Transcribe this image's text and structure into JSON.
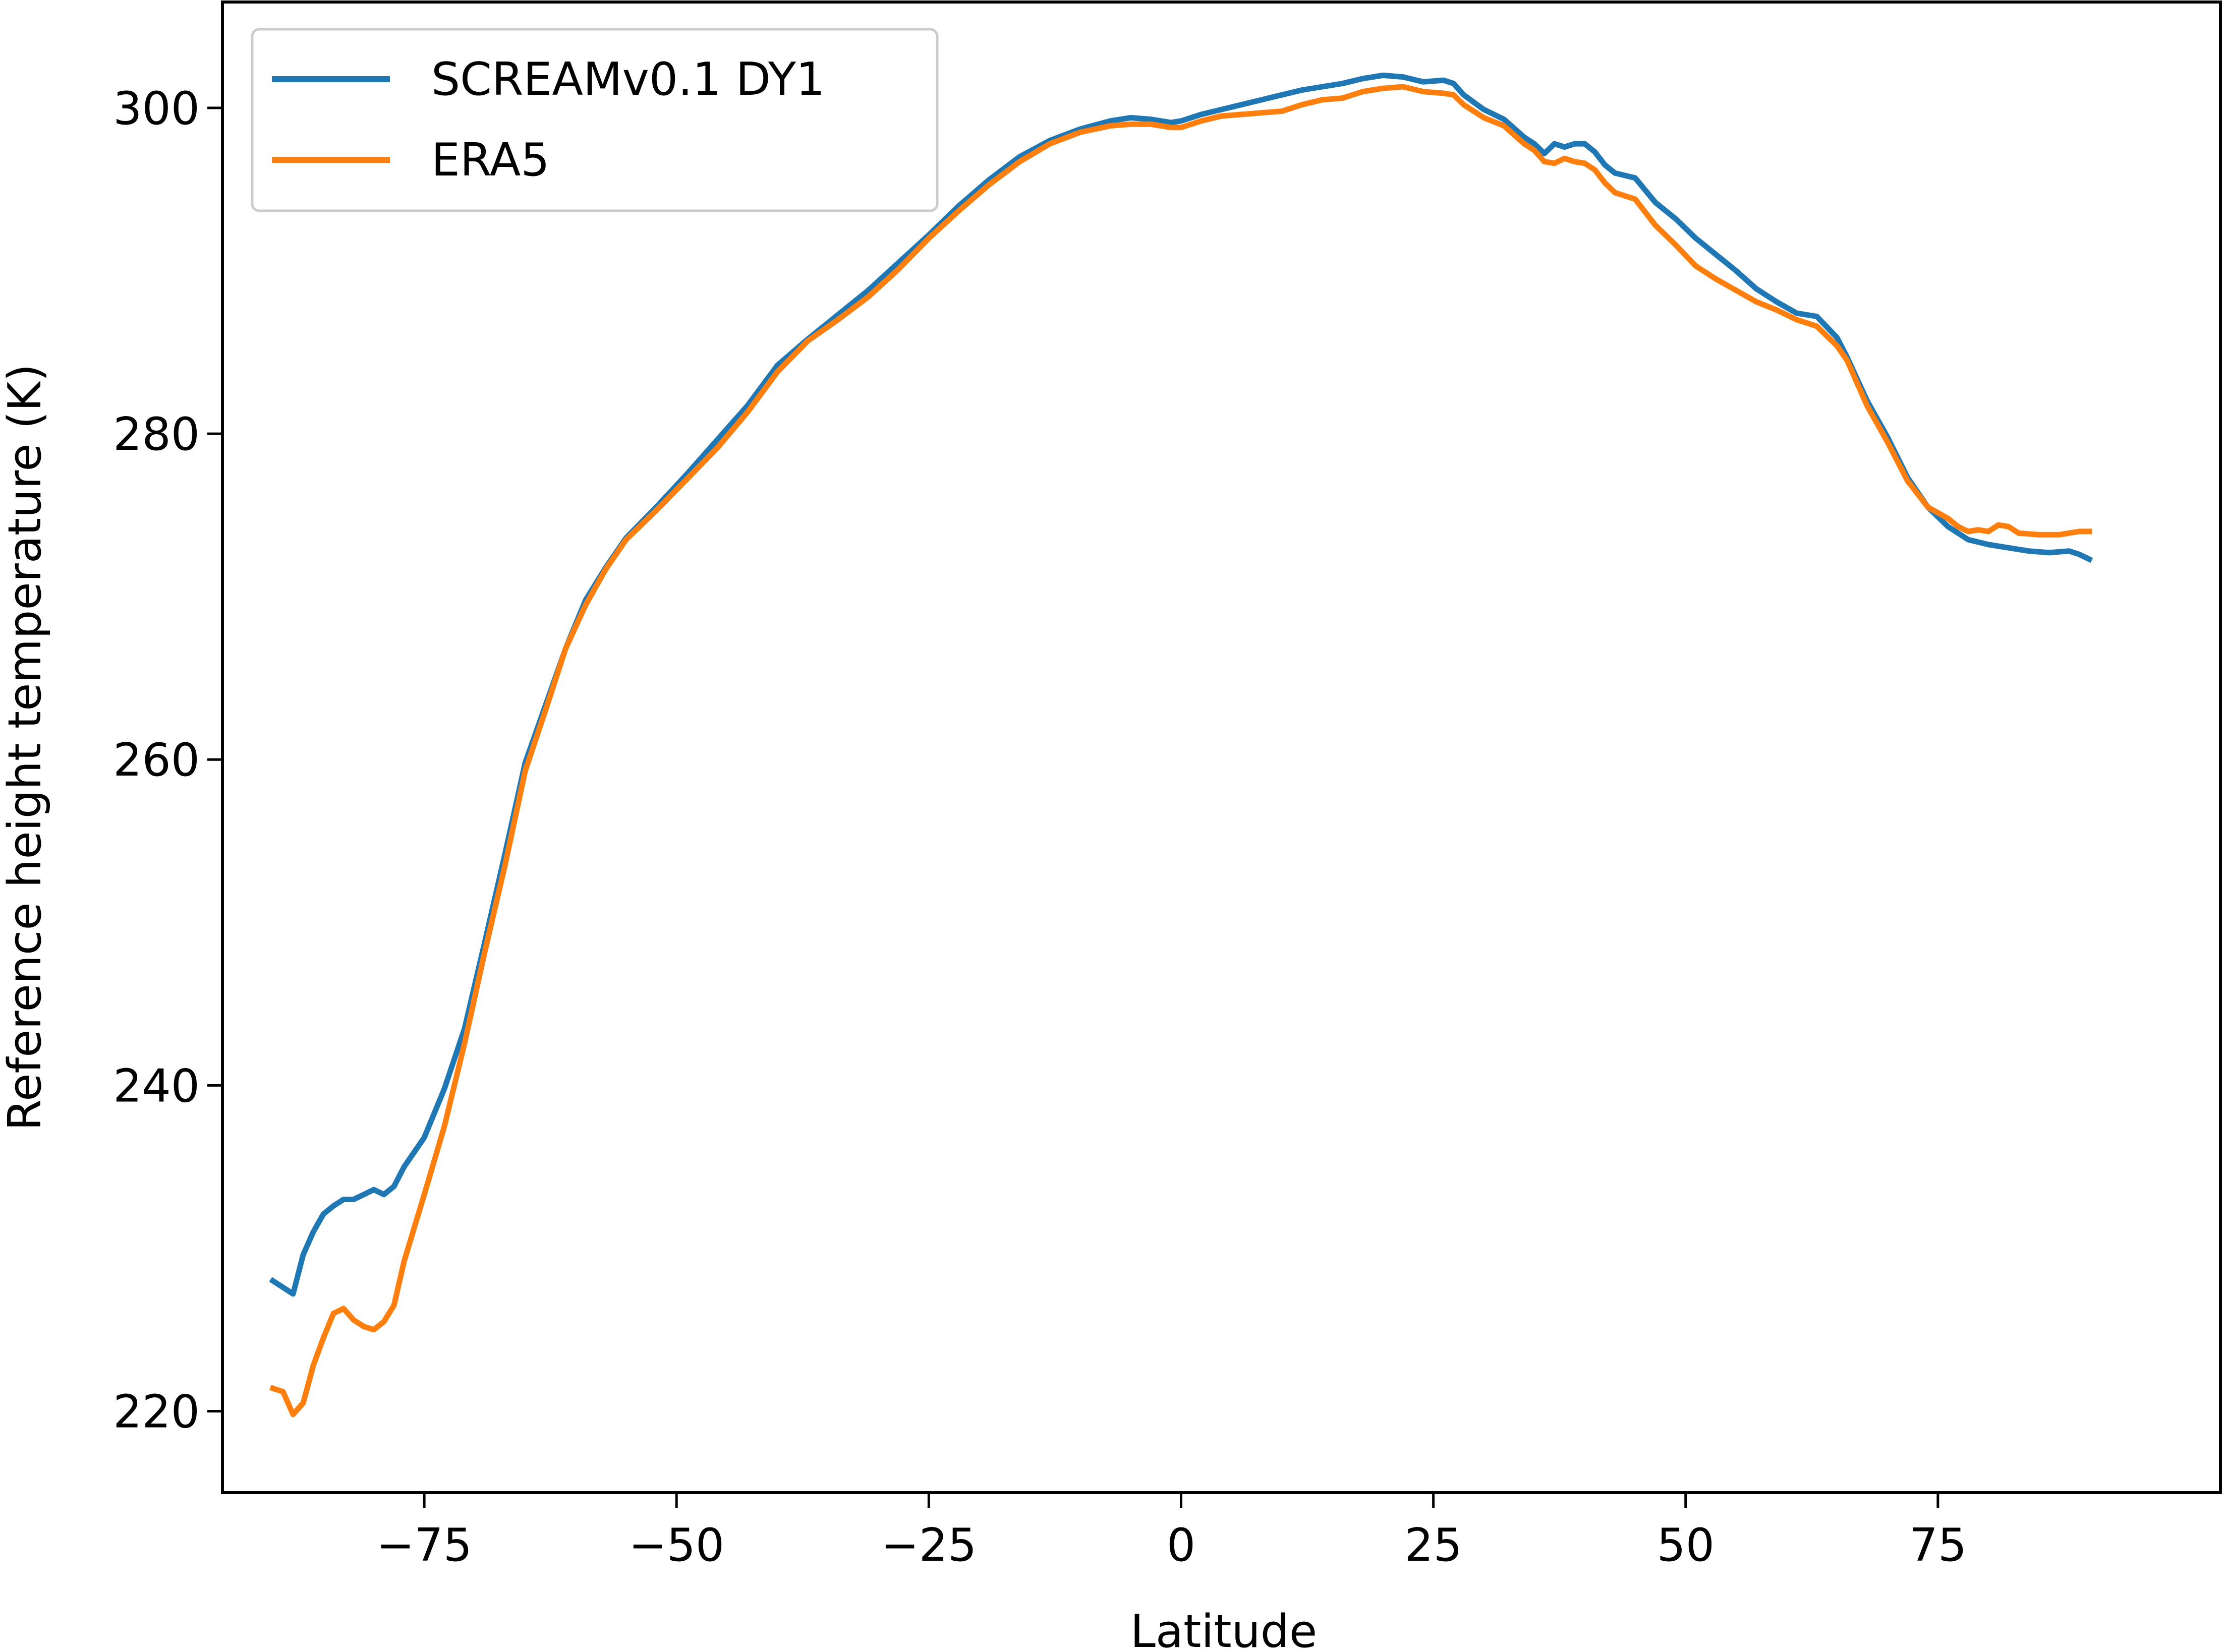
{
  "chart_data": {
    "type": "line",
    "xlabel": "Latitude",
    "ylabel": "Reference height temperature (K)",
    "xlim": [
      -95,
      103
    ],
    "ylim": [
      215,
      306.5
    ],
    "xticks": [
      -75,
      -50,
      -25,
      0,
      25,
      50,
      75
    ],
    "xtick_labels": [
      "−75",
      "−50",
      "−25",
      "0",
      "25",
      "50",
      "75"
    ],
    "yticks": [
      220,
      240,
      260,
      280,
      300
    ],
    "ytick_labels": [
      "220",
      "240",
      "260",
      "280",
      "300"
    ],
    "grid": false,
    "legend": "upper left",
    "series": [
      {
        "name": "SCREAMv0.1 DY1",
        "color": "#1f77b4",
        "points": [
          [
            -90,
            228.0
          ],
          [
            -89,
            227.6
          ],
          [
            -88,
            227.2
          ],
          [
            -87,
            229.6
          ],
          [
            -86,
            231.0
          ],
          [
            -85,
            232.1
          ],
          [
            -84,
            232.6
          ],
          [
            -83,
            233.0
          ],
          [
            -82,
            233.0
          ],
          [
            -81,
            233.3
          ],
          [
            -80,
            233.6
          ],
          [
            -79,
            233.3
          ],
          [
            -78,
            233.8
          ],
          [
            -77,
            235.0
          ],
          [
            -75,
            236.8
          ],
          [
            -73,
            239.8
          ],
          [
            -71,
            243.5
          ],
          [
            -69,
            248.8
          ],
          [
            -67,
            254.2
          ],
          [
            -65,
            259.8
          ],
          [
            -63,
            263.3
          ],
          [
            -61,
            266.8
          ],
          [
            -59,
            269.8
          ],
          [
            -57,
            271.8
          ],
          [
            -55,
            273.6
          ],
          [
            -52,
            275.5
          ],
          [
            -49,
            277.5
          ],
          [
            -46,
            279.6
          ],
          [
            -43,
            281.7
          ],
          [
            -40,
            284.2
          ],
          [
            -37,
            285.8
          ],
          [
            -34,
            287.3
          ],
          [
            -31,
            288.8
          ],
          [
            -28,
            290.5
          ],
          [
            -25,
            292.2
          ],
          [
            -22,
            294.0
          ],
          [
            -19,
            295.6
          ],
          [
            -16,
            297.0
          ],
          [
            -13,
            298.0
          ],
          [
            -10,
            298.7
          ],
          [
            -7,
            299.2
          ],
          [
            -5,
            299.4
          ],
          [
            -3,
            299.3
          ],
          [
            -1,
            299.1
          ],
          [
            0,
            299.2
          ],
          [
            2,
            299.6
          ],
          [
            4,
            299.9
          ],
          [
            6,
            300.2
          ],
          [
            8,
            300.5
          ],
          [
            10,
            300.8
          ],
          [
            12,
            301.1
          ],
          [
            14,
            301.3
          ],
          [
            16,
            301.5
          ],
          [
            18,
            301.8
          ],
          [
            20,
            302.0
          ],
          [
            22,
            301.9
          ],
          [
            24,
            301.6
          ],
          [
            26,
            301.7
          ],
          [
            27,
            301.5
          ],
          [
            28,
            300.8
          ],
          [
            30,
            299.9
          ],
          [
            32,
            299.3
          ],
          [
            34,
            298.2
          ],
          [
            35,
            297.8
          ],
          [
            36,
            297.2
          ],
          [
            37,
            297.8
          ],
          [
            38,
            297.6
          ],
          [
            39,
            297.8
          ],
          [
            40,
            297.8
          ],
          [
            41,
            297.3
          ],
          [
            42,
            296.5
          ],
          [
            43,
            296.0
          ],
          [
            45,
            295.7
          ],
          [
            47,
            294.2
          ],
          [
            49,
            293.2
          ],
          [
            51,
            292.0
          ],
          [
            53,
            291.0
          ],
          [
            55,
            290.0
          ],
          [
            57,
            288.9
          ],
          [
            59,
            288.1
          ],
          [
            61,
            287.4
          ],
          [
            63,
            287.2
          ],
          [
            65,
            285.9
          ],
          [
            66,
            284.7
          ],
          [
            68,
            282.0
          ],
          [
            70,
            279.8
          ],
          [
            72,
            277.3
          ],
          [
            74,
            275.5
          ],
          [
            76,
            274.3
          ],
          [
            78,
            273.5
          ],
          [
            80,
            273.2
          ],
          [
            82,
            273.0
          ],
          [
            84,
            272.8
          ],
          [
            86,
            272.7
          ],
          [
            88,
            272.8
          ],
          [
            89,
            272.6
          ],
          [
            90,
            272.3
          ]
        ]
      },
      {
        "name": "ERA5",
        "color": "#ff7f0e",
        "points": [
          [
            -90,
            221.4
          ],
          [
            -89,
            221.2
          ],
          [
            -88,
            219.8
          ],
          [
            -87,
            220.5
          ],
          [
            -86,
            222.8
          ],
          [
            -85,
            224.5
          ],
          [
            -84,
            226.0
          ],
          [
            -83,
            226.3
          ],
          [
            -82,
            225.6
          ],
          [
            -81,
            225.2
          ],
          [
            -80,
            225.0
          ],
          [
            -79,
            225.5
          ],
          [
            -78,
            226.5
          ],
          [
            -77,
            229.2
          ],
          [
            -75,
            233.3
          ],
          [
            -73,
            237.5
          ],
          [
            -71,
            242.6
          ],
          [
            -69,
            248.2
          ],
          [
            -67,
            253.5
          ],
          [
            -65,
            259.3
          ],
          [
            -63,
            263.0
          ],
          [
            -61,
            266.8
          ],
          [
            -59,
            269.5
          ],
          [
            -57,
            271.7
          ],
          [
            -55,
            273.5
          ],
          [
            -52,
            275.3
          ],
          [
            -49,
            277.2
          ],
          [
            -46,
            279.1
          ],
          [
            -43,
            281.3
          ],
          [
            -40,
            283.8
          ],
          [
            -37,
            285.7
          ],
          [
            -34,
            287.0
          ],
          [
            -31,
            288.4
          ],
          [
            -28,
            290.1
          ],
          [
            -25,
            292.0
          ],
          [
            -22,
            293.7
          ],
          [
            -19,
            295.3
          ],
          [
            -16,
            296.7
          ],
          [
            -13,
            297.8
          ],
          [
            -10,
            298.5
          ],
          [
            -7,
            298.9
          ],
          [
            -5,
            299.0
          ],
          [
            -3,
            299.0
          ],
          [
            -1,
            298.8
          ],
          [
            0,
            298.8
          ],
          [
            2,
            299.2
          ],
          [
            4,
            299.5
          ],
          [
            6,
            299.6
          ],
          [
            8,
            299.7
          ],
          [
            10,
            299.8
          ],
          [
            12,
            300.2
          ],
          [
            14,
            300.5
          ],
          [
            16,
            300.6
          ],
          [
            18,
            301.0
          ],
          [
            20,
            301.2
          ],
          [
            22,
            301.3
          ],
          [
            24,
            301.0
          ],
          [
            26,
            300.9
          ],
          [
            27,
            300.8
          ],
          [
            28,
            300.2
          ],
          [
            30,
            299.4
          ],
          [
            32,
            298.9
          ],
          [
            34,
            297.8
          ],
          [
            35,
            297.4
          ],
          [
            36,
            296.7
          ],
          [
            37,
            296.6
          ],
          [
            38,
            296.9
          ],
          [
            39,
            296.7
          ],
          [
            40,
            296.6
          ],
          [
            41,
            296.2
          ],
          [
            42,
            295.4
          ],
          [
            43,
            294.8
          ],
          [
            45,
            294.4
          ],
          [
            47,
            292.8
          ],
          [
            49,
            291.6
          ],
          [
            51,
            290.3
          ],
          [
            53,
            289.5
          ],
          [
            55,
            288.8
          ],
          [
            57,
            288.1
          ],
          [
            59,
            287.6
          ],
          [
            61,
            287.0
          ],
          [
            63,
            286.6
          ],
          [
            65,
            285.4
          ],
          [
            66,
            284.5
          ],
          [
            68,
            281.7
          ],
          [
            70,
            279.5
          ],
          [
            72,
            277.1
          ],
          [
            74,
            275.5
          ],
          [
            76,
            274.8
          ],
          [
            77,
            274.3
          ],
          [
            78,
            274.0
          ],
          [
            79,
            274.1
          ],
          [
            80,
            274.0
          ],
          [
            81,
            274.4
          ],
          [
            82,
            274.3
          ],
          [
            83,
            273.9
          ],
          [
            85,
            273.8
          ],
          [
            87,
            273.8
          ],
          [
            89,
            274.0
          ],
          [
            90,
            274.0
          ]
        ]
      }
    ]
  }
}
